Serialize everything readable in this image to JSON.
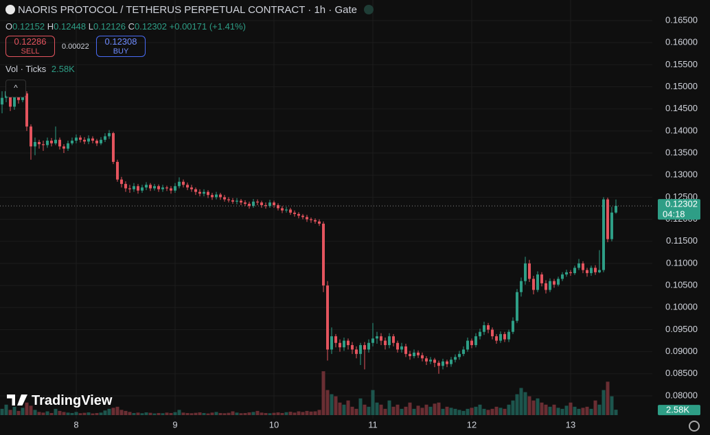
{
  "chart_data": {
    "type": "candlestick",
    "title": "NAORIS PROTOCOL / TETHERUS PERPETUAL CONTRACT · 1h · Gate",
    "ohlc_labels": [
      "O",
      "H",
      "L",
      "C"
    ],
    "change": "+0.00171 (+1.41%)",
    "sell": {
      "price": 0.12286,
      "label": "SELL"
    },
    "spread": 0.00022,
    "buy": {
      "price": 0.12308,
      "label": "BUY"
    },
    "volume_title": "Vol · Ticks",
    "volume_value_label": "2.58K",
    "countdown": "04:18",
    "brand": "TradingView",
    "categories": [
      null,
      null,
      null,
      null,
      null,
      null,
      null,
      null,
      null,
      null,
      null,
      null,
      null,
      null,
      null,
      null,
      null,
      null,
      "8",
      null,
      null,
      null,
      null,
      null,
      null,
      null,
      null,
      null,
      null,
      null,
      null,
      null,
      null,
      null,
      null,
      null,
      null,
      null,
      null,
      null,
      null,
      null,
      "9",
      null,
      null,
      null,
      null,
      null,
      null,
      null,
      null,
      null,
      null,
      null,
      null,
      null,
      null,
      null,
      null,
      null,
      null,
      null,
      null,
      null,
      null,
      null,
      "10",
      null,
      null,
      null,
      null,
      null,
      null,
      null,
      null,
      null,
      null,
      null,
      null,
      null,
      null,
      null,
      null,
      null,
      null,
      null,
      null,
      null,
      null,
      null,
      "11",
      null,
      null,
      null,
      null,
      null,
      null,
      null,
      null,
      null,
      null,
      null,
      null,
      null,
      null,
      null,
      null,
      null,
      null,
      null,
      null,
      null,
      null,
      null,
      "12",
      null,
      null,
      null,
      null,
      null,
      null,
      null,
      null,
      null,
      null,
      null,
      null,
      null,
      null,
      null,
      null,
      null,
      null,
      null,
      null,
      null,
      null,
      null,
      "13",
      null,
      null,
      null,
      null,
      null,
      null,
      null,
      null,
      null,
      null,
      null
    ],
    "open": [
      0.146,
      0.1475,
      0.149,
      0.1455,
      0.148,
      0.147,
      0.1485,
      0.141,
      0.1365,
      0.1375,
      0.137,
      0.1368,
      0.1378,
      0.1372,
      0.138,
      0.1365,
      0.136,
      0.1372,
      0.1378,
      0.1385,
      0.138,
      0.1376,
      0.1383,
      0.1378,
      0.1372,
      0.138,
      0.1388,
      0.1395,
      0.133,
      0.129,
      0.128,
      0.127,
      0.1268,
      0.1275,
      0.1265,
      0.1272,
      0.1278,
      0.127,
      0.1275,
      0.1268,
      0.1272,
      0.127,
      0.1265,
      0.1275,
      0.1285,
      0.1278,
      0.1272,
      0.1268,
      0.1262,
      0.1258,
      0.1262,
      0.1255,
      0.125,
      0.1256,
      0.125,
      0.1245,
      0.1243,
      0.124,
      0.1242,
      0.1238,
      0.1235,
      0.123,
      0.124,
      0.1238,
      0.1232,
      0.123,
      0.1238,
      0.1232,
      0.1225,
      0.122,
      0.1222,
      0.1215,
      0.1212,
      0.1208,
      0.1205,
      0.12,
      0.1198,
      0.1195,
      0.119,
      0.105,
      0.0905,
      0.0935,
      0.092,
      0.091,
      0.0925,
      0.0915,
      0.0905,
      0.0895,
      0.0915,
      0.0905,
      0.092,
      0.093,
      0.0935,
      0.0925,
      0.0915,
      0.0935,
      0.092,
      0.0905,
      0.0912,
      0.0895,
      0.089,
      0.0898,
      0.0892,
      0.0885,
      0.0878,
      0.0882,
      0.0875,
      0.0868,
      0.0878,
      0.0872,
      0.0882,
      0.0888,
      0.0895,
      0.0905,
      0.0925,
      0.0915,
      0.0935,
      0.0945,
      0.096,
      0.095,
      0.0935,
      0.0925,
      0.094,
      0.0928,
      0.0945,
      0.097,
      0.1035,
      0.106,
      0.11,
      0.1065,
      0.104,
      0.1075,
      0.1055,
      0.104,
      0.106,
      0.1052,
      0.1065,
      0.1075,
      0.108,
      0.1078,
      0.109,
      0.11,
      0.1085,
      0.1078,
      0.109,
      0.108,
      0.1085,
      0.1245,
      0.1155,
      0.12152
    ],
    "high": [
      0.149,
      0.1505,
      0.1495,
      0.1488,
      0.15,
      0.1492,
      0.149,
      0.1415,
      0.1385,
      0.138,
      0.1378,
      0.1385,
      0.1384,
      0.141,
      0.1385,
      0.137,
      0.1378,
      0.1385,
      0.1392,
      0.139,
      0.1386,
      0.139,
      0.1388,
      0.1382,
      0.1386,
      0.1395,
      0.1402,
      0.1398,
      0.1335,
      0.1296,
      0.1286,
      0.1278,
      0.1282,
      0.128,
      0.1278,
      0.1284,
      0.1282,
      0.128,
      0.1279,
      0.1278,
      0.1276,
      0.1275,
      0.1282,
      0.1295,
      0.129,
      0.1283,
      0.1278,
      0.1272,
      0.1268,
      0.1268,
      0.1266,
      0.126,
      0.1262,
      0.126,
      0.1255,
      0.125,
      0.1248,
      0.1248,
      0.1246,
      0.1243,
      0.124,
      0.1246,
      0.1245,
      0.1242,
      0.1238,
      0.1244,
      0.1242,
      0.1236,
      0.123,
      0.1228,
      0.1226,
      0.122,
      0.1216,
      0.1212,
      0.121,
      0.1204,
      0.1202,
      0.12,
      0.1195,
      0.106,
      0.0955,
      0.094,
      0.0928,
      0.0932,
      0.093,
      0.0922,
      0.0912,
      0.092,
      0.0922,
      0.0928,
      0.0965,
      0.0945,
      0.0942,
      0.0932,
      0.0942,
      0.094,
      0.0925,
      0.092,
      0.0918,
      0.0902,
      0.0905,
      0.0903,
      0.0898,
      0.089,
      0.0888,
      0.0886,
      0.088,
      0.0884,
      0.0882,
      0.0888,
      0.0894,
      0.0902,
      0.0912,
      0.0932,
      0.093,
      0.0942,
      0.0952,
      0.0968,
      0.0965,
      0.0955,
      0.094,
      0.0946,
      0.0945,
      0.095,
      0.0978,
      0.1042,
      0.1068,
      0.1115,
      0.1108,
      0.1072,
      0.1082,
      0.108,
      0.1062,
      0.1066,
      0.1065,
      0.107,
      0.108,
      0.1086,
      0.1085,
      0.1095,
      0.111,
      0.1105,
      0.109,
      0.1095,
      0.1096,
      0.113,
      0.125,
      0.1249,
      0.1228,
      0.12448
    ],
    "low": [
      0.144,
      0.1465,
      0.1445,
      0.1448,
      0.1462,
      0.1465,
      0.14,
      0.1335,
      0.1345,
      0.136,
      0.1355,
      0.1362,
      0.1365,
      0.1368,
      0.1358,
      0.135,
      0.1355,
      0.1368,
      0.1372,
      0.1374,
      0.137,
      0.137,
      0.1372,
      0.1366,
      0.1368,
      0.1375,
      0.1382,
      0.1325,
      0.1285,
      0.1272,
      0.1262,
      0.126,
      0.1262,
      0.1258,
      0.126,
      0.1266,
      0.1264,
      0.1265,
      0.1262,
      0.1262,
      0.1264,
      0.1258,
      0.126,
      0.127,
      0.1272,
      0.1266,
      0.1262,
      0.1255,
      0.1252,
      0.1252,
      0.1248,
      0.1244,
      0.1245,
      0.1244,
      0.124,
      0.1238,
      0.1235,
      0.1234,
      0.1232,
      0.123,
      0.1224,
      0.1226,
      0.1232,
      0.1226,
      0.1224,
      0.1226,
      0.1226,
      0.122,
      0.1214,
      0.1215,
      0.121,
      0.1206,
      0.1202,
      0.12,
      0.1194,
      0.1192,
      0.119,
      0.1185,
      0.1035,
      0.088,
      0.0895,
      0.091,
      0.09,
      0.0902,
      0.0905,
      0.0895,
      0.0885,
      0.087,
      0.086,
      0.0898,
      0.0912,
      0.0918,
      0.0915,
      0.0905,
      0.0908,
      0.0912,
      0.0898,
      0.0898,
      0.0888,
      0.0882,
      0.0885,
      0.0886,
      0.0878,
      0.087,
      0.0872,
      0.0865,
      0.085,
      0.086,
      0.0865,
      0.0866,
      0.0876,
      0.0882,
      0.089,
      0.09,
      0.0908,
      0.091,
      0.0928,
      0.0938,
      0.0942,
      0.0928,
      0.0918,
      0.092,
      0.0922,
      0.0922,
      0.094,
      0.0965,
      0.1025,
      0.1052,
      0.1058,
      0.103,
      0.1035,
      0.1048,
      0.1032,
      0.1035,
      0.1045,
      0.1048,
      0.106,
      0.107,
      0.1072,
      0.1074,
      0.1085,
      0.1078,
      0.107,
      0.1072,
      0.1074,
      0.1078,
      0.108,
      0.1148,
      0.115,
      0.12126
    ],
    "close": [
      0.1475,
      0.149,
      0.1455,
      0.148,
      0.147,
      0.1485,
      0.141,
      0.1365,
      0.1375,
      0.137,
      0.1368,
      0.1378,
      0.1372,
      0.138,
      0.1365,
      0.136,
      0.1372,
      0.1378,
      0.1385,
      0.138,
      0.1376,
      0.1383,
      0.1378,
      0.1372,
      0.138,
      0.1388,
      0.1395,
      0.133,
      0.129,
      0.128,
      0.127,
      0.1268,
      0.1275,
      0.1265,
      0.1272,
      0.1278,
      0.127,
      0.1275,
      0.1268,
      0.1272,
      0.127,
      0.1265,
      0.1275,
      0.1285,
      0.1278,
      0.1272,
      0.1268,
      0.1262,
      0.1258,
      0.1262,
      0.1255,
      0.125,
      0.1256,
      0.125,
      0.1245,
      0.1243,
      0.124,
      0.1242,
      0.1238,
      0.1235,
      0.123,
      0.124,
      0.1238,
      0.1232,
      0.123,
      0.1238,
      0.1232,
      0.1225,
      0.122,
      0.1222,
      0.1215,
      0.1212,
      0.1208,
      0.1205,
      0.12,
      0.1198,
      0.1195,
      0.119,
      0.105,
      0.0905,
      0.0935,
      0.092,
      0.091,
      0.0925,
      0.0915,
      0.0905,
      0.0895,
      0.0915,
      0.0905,
      0.092,
      0.093,
      0.0935,
      0.0925,
      0.0915,
      0.0935,
      0.092,
      0.0905,
      0.0912,
      0.0895,
      0.089,
      0.0898,
      0.0892,
      0.0885,
      0.0878,
      0.0882,
      0.0875,
      0.0868,
      0.0878,
      0.0872,
      0.0882,
      0.0888,
      0.0895,
      0.0905,
      0.0925,
      0.0915,
      0.0935,
      0.0945,
      0.096,
      0.095,
      0.0935,
      0.0925,
      0.094,
      0.0928,
      0.0945,
      0.097,
      0.1035,
      0.106,
      0.11,
      0.1065,
      0.104,
      0.1075,
      0.1055,
      0.104,
      0.106,
      0.1052,
      0.1065,
      0.1075,
      0.108,
      0.1078,
      0.109,
      0.11,
      0.1085,
      0.1078,
      0.109,
      0.108,
      0.1085,
      0.1245,
      0.1155,
      0.12152,
      0.12302
    ],
    "volume": [
      3000,
      5000,
      2500,
      4000,
      2000,
      3500,
      6000,
      4500,
      2500,
      1500,
      1200,
      1800,
      1000,
      3000,
      2000,
      1500,
      1200,
      1000,
      1500,
      900,
      1100,
      1300,
      800,
      1000,
      1200,
      2200,
      3000,
      3500,
      4000,
      2500,
      2000,
      1500,
      1000,
      1200,
      900,
      1300,
      1100,
      800,
      1000,
      900,
      1200,
      1000,
      1400,
      2500,
      1200,
      1000,
      900,
      1100,
      1300,
      1000,
      800,
      1200,
      1500,
      1000,
      900,
      1100,
      1800,
      1200,
      900,
      1000,
      1300,
      1500,
      2000,
      1200,
      1000,
      900,
      1100,
      1300,
      1000,
      1400,
      1600,
      1200,
      1800,
      1500,
      2000,
      1700,
      1800,
      2500,
      21000,
      12000,
      10000,
      9000,
      6000,
      5000,
      7000,
      4000,
      3000,
      8000,
      5000,
      4000,
      12000,
      6000,
      5000,
      3000,
      7000,
      4000,
      5000,
      3000,
      4000,
      6000,
      3000,
      4500,
      3500,
      5000,
      4000,
      5500,
      6000,
      3000,
      4000,
      3500,
      3000,
      2500,
      2000,
      3000,
      3500,
      4000,
      5000,
      3000,
      2500,
      3000,
      4000,
      3500,
      3000,
      5000,
      7000,
      10000,
      13000,
      11000,
      9000,
      7000,
      8000,
      6000,
      5000,
      4000,
      5000,
      3500,
      3000,
      4500,
      6000,
      4000,
      3000,
      3500,
      4000,
      3000,
      7000,
      5000,
      12000,
      16000,
      9000,
      2580
    ],
    "up_color": "#2e9e86",
    "down_color": "#e4545e",
    "volume_up_color": "#1d554d",
    "volume_down_color": "#6a2e33",
    "ylim": [
      0.07487,
      0.16966
    ],
    "volume_ylim": [
      0,
      23000
    ],
    "yticks": [
      {
        "value": 0.08,
        "label": "0.08000"
      },
      {
        "value": 0.085,
        "label": "0.08500"
      },
      {
        "value": 0.09,
        "label": "0.09000"
      },
      {
        "value": 0.095,
        "label": "0.09500"
      },
      {
        "value": 0.1,
        "label": "0.10000"
      },
      {
        "value": 0.105,
        "label": "0.10500"
      },
      {
        "value": 0.11,
        "label": "0.11000"
      },
      {
        "value": 0.115,
        "label": "0.11500"
      },
      {
        "value": 0.12,
        "label": "0.12000"
      },
      {
        "value": 0.125,
        "label": "0.12500"
      },
      {
        "value": 0.13,
        "label": "0.13000"
      },
      {
        "value": 0.135,
        "label": "0.13500"
      },
      {
        "value": 0.14,
        "label": "0.14000"
      },
      {
        "value": 0.145,
        "label": "0.14500"
      },
      {
        "value": 0.15,
        "label": "0.15000"
      },
      {
        "value": 0.155,
        "label": "0.15500"
      },
      {
        "value": 0.16,
        "label": "0.16000"
      },
      {
        "value": 0.165,
        "label": "0.16500"
      }
    ],
    "grid": true
  }
}
